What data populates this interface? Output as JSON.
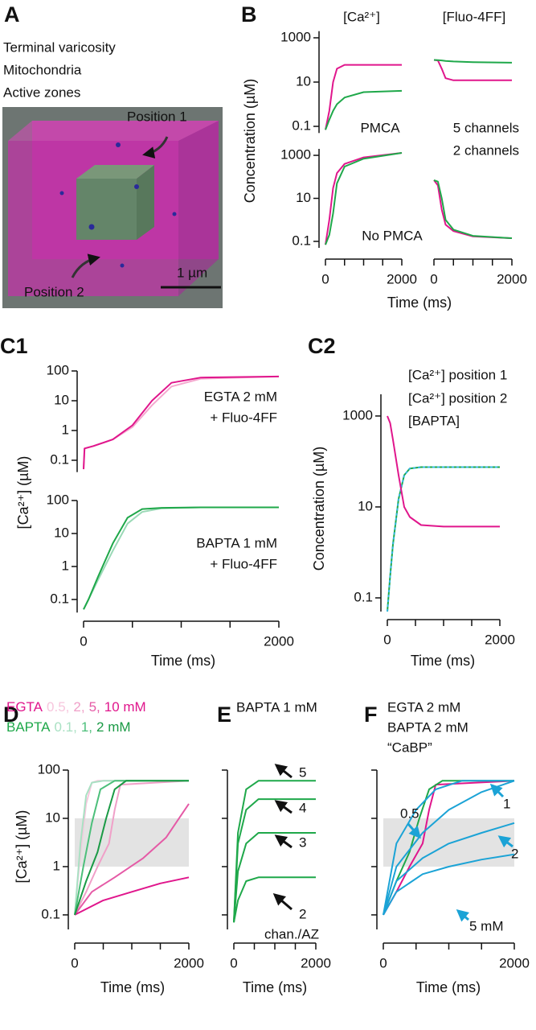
{
  "panel_a": {
    "label": "A",
    "legend": [
      {
        "text": "Terminal varicosity",
        "color": "#d6168a"
      },
      {
        "text": "Mitochondria",
        "color": "#1aa99a"
      },
      {
        "text": "Active zones",
        "color": "#2a2a9a"
      }
    ],
    "position_1": "Position 1",
    "position_2": "Position 2",
    "scale_bar": "1 µm"
  },
  "chart_data": [
    {
      "type": "line",
      "panel": "B",
      "title": "[Ca²⁺]",
      "ylabel": "Concentration (µM)",
      "ylog": true,
      "annotations": [
        {
          "text": "PMCA",
          "color": "#111111"
        }
      ],
      "xlim": [
        0,
        2000
      ],
      "ylim": [
        0.05,
        2000
      ],
      "yticks": [
        0.1,
        10,
        1000
      ],
      "series": [
        {
          "color": "#e0168c",
          "x": [
            0,
            100,
            200,
            300,
            500,
            1000,
            2000
          ],
          "values": [
            0.07,
            0.5,
            10,
            40,
            60,
            60,
            60
          ]
        },
        {
          "color": "#1fa84a",
          "x": [
            0,
            100,
            200,
            300,
            500,
            1000,
            2000
          ],
          "values": [
            0.07,
            0.2,
            0.5,
            1,
            2,
            3.5,
            4
          ]
        }
      ]
    },
    {
      "type": "line",
      "title": "[Fluo-4FF]",
      "ylog": true,
      "annotations": [
        {
          "text": "5 channels",
          "color": "#e0168c"
        },
        {
          "text": "2 channels",
          "color": "#1fa84a"
        }
      ],
      "xlim": [
        0,
        2000
      ],
      "ylim": [
        0.05,
        2000
      ],
      "series": [
        {
          "color": "#e0168c",
          "x": [
            0,
            100,
            200,
            300,
            500,
            1000,
            2000
          ],
          "values": [
            100,
            95,
            40,
            15,
            12,
            12,
            12
          ]
        },
        {
          "color": "#1fa84a",
          "x": [
            0,
            100,
            200,
            300,
            500,
            1000,
            2000
          ],
          "values": [
            100,
            98,
            95,
            90,
            85,
            80,
            75
          ]
        }
      ]
    },
    {
      "type": "line",
      "xlabel": "Time (ms)",
      "ylog": true,
      "annotations": [
        {
          "text": "No PMCA",
          "color": "#111111"
        }
      ],
      "xlim": [
        0,
        2000
      ],
      "ylim": [
        0.05,
        2000
      ],
      "yticks": [
        0.1,
        10,
        1000
      ],
      "xticks": [
        0,
        2000
      ],
      "xminor": [
        500,
        1000,
        1500
      ],
      "series": [
        {
          "color": "#e0168c",
          "x": [
            0,
            100,
            200,
            300,
            500,
            1000,
            2000
          ],
          "values": [
            0.07,
            1,
            30,
            150,
            400,
            800,
            1300
          ]
        },
        {
          "color": "#1fa84a",
          "x": [
            0,
            100,
            200,
            300,
            500,
            1000,
            2000
          ],
          "values": [
            0.07,
            0.2,
            2,
            50,
            300,
            700,
            1300
          ]
        }
      ]
    },
    {
      "type": "line",
      "ylog": true,
      "xlim": [
        0,
        2000
      ],
      "ylim": [
        0.05,
        2000
      ],
      "xticks": [
        0,
        2000
      ],
      "xminor": [
        500,
        1000,
        1500
      ],
      "series": [
        {
          "color": "#e0168c",
          "x": [
            0,
            100,
            200,
            300,
            500,
            1000,
            2000
          ],
          "values": [
            70,
            40,
            3,
            0.6,
            0.3,
            0.17,
            0.14
          ]
        },
        {
          "color": "#1fa84a",
          "x": [
            0,
            100,
            200,
            300,
            500,
            1000,
            2000
          ],
          "values": [
            70,
            60,
            10,
            1,
            0.35,
            0.18,
            0.14
          ]
        }
      ]
    },
    {
      "type": "line",
      "panel": "C1",
      "ylabel": "[Ca²⁺] (µM)",
      "ylog": true,
      "annotations": [
        {
          "text": "EGTA 2 mM",
          "color": "#e0168c"
        },
        {
          "text": "+ Fluo-4FF",
          "color": "#f5a8cf"
        }
      ],
      "xlim": [
        0,
        2000
      ],
      "ylim": [
        0.04,
        100
      ],
      "yticks": [
        0.1,
        1,
        10,
        100
      ],
      "series": [
        {
          "color": "#f5a8cf",
          "x": [
            0,
            10,
            100,
            300,
            500,
            700,
            900,
            1200,
            2000
          ],
          "values": [
            0.05,
            0.25,
            0.3,
            0.5,
            1.3,
            7,
            30,
            55,
            65
          ]
        },
        {
          "color": "#e0168c",
          "x": [
            0,
            10,
            100,
            300,
            500,
            700,
            900,
            1200,
            2000
          ],
          "values": [
            0.05,
            0.25,
            0.3,
            0.5,
            1.5,
            10,
            40,
            60,
            65
          ]
        }
      ]
    },
    {
      "type": "line",
      "xlabel": "Time (ms)",
      "ylog": true,
      "annotations": [
        {
          "text": "BAPTA 1 mM",
          "color": "#1fa84a"
        },
        {
          "text": "+ Fluo-4FF",
          "color": "#9ad9b6"
        }
      ],
      "xlim": [
        0,
        2000
      ],
      "ylim": [
        0.04,
        100
      ],
      "yticks": [
        0.1,
        1,
        10,
        100
      ],
      "xticks": [
        0,
        2000
      ],
      "xminor": [
        500,
        1000,
        1500
      ],
      "series": [
        {
          "color": "#9ad9b6",
          "x": [
            0,
            50,
            150,
            300,
            450,
            600,
            800,
            1200,
            2000
          ],
          "values": [
            0.05,
            0.1,
            0.4,
            3,
            20,
            45,
            58,
            62,
            62
          ]
        },
        {
          "color": "#1fa84a",
          "x": [
            0,
            50,
            150,
            300,
            450,
            600,
            800,
            1200,
            2000
          ],
          "values": [
            0.05,
            0.1,
            0.5,
            5,
            30,
            55,
            60,
            62,
            62
          ]
        }
      ]
    },
    {
      "type": "line",
      "panel": "C2",
      "ylabel": "Concentration (µM)",
      "xlabel": "Time (ms)",
      "ylog": true,
      "xlim": [
        0,
        2000
      ],
      "ylim": [
        0.05,
        3000
      ],
      "yticks": [
        0.1,
        10,
        1000
      ],
      "xticks": [
        0,
        2000
      ],
      "xminor": [
        500,
        1000,
        1500
      ],
      "series": [
        {
          "name": "[Ca²⁺] position 1",
          "color": "#1fa84a",
          "x": [
            0,
            50,
            100,
            200,
            300,
            400,
            600,
            1000,
            2000
          ],
          "values": [
            0.05,
            0.3,
            1.5,
            15,
            50,
            70,
            75,
            75,
            75
          ]
        },
        {
          "name": "[Ca²⁺] position 2",
          "color": "#35b7e0",
          "dash": true,
          "x": [
            0,
            50,
            100,
            200,
            300,
            400,
            600,
            1000,
            2000
          ],
          "values": [
            0.05,
            0.3,
            1.5,
            15,
            50,
            70,
            75,
            75,
            75
          ]
        },
        {
          "name": "[BAPTA]",
          "color": "#e0168c",
          "x": [
            0,
            50,
            100,
            200,
            300,
            400,
            600,
            1000,
            2000
          ],
          "values": [
            1000,
            700,
            300,
            50,
            10,
            6,
            4,
            3.7,
            3.7
          ]
        }
      ]
    },
    {
      "type": "line",
      "panel": "D",
      "ylabel": "[Ca²⁺] (µM)",
      "xlabel": "Time (ms)",
      "ylog": true,
      "groups": [
        {
          "text": "EGTA",
          "color": "#e0168c"
        },
        {
          "text": "BAPTA",
          "color": "#1fa84a"
        }
      ],
      "band": [
        1,
        10
      ],
      "xlim": [
        0,
        2000
      ],
      "ylim": [
        0.05,
        100
      ],
      "yticks": [
        0.1,
        1,
        10,
        100
      ],
      "xticks": [
        0,
        2000
      ],
      "xminor": [
        500,
        1000,
        1500
      ],
      "series": [
        {
          "name": "0.5,",
          "group": 0,
          "color": "#f7c6dd",
          "x": [
            0,
            100,
            200,
            300,
            400,
            2000
          ],
          "values": [
            0.1,
            2,
            20,
            55,
            60,
            60
          ]
        },
        {
          "name": "2,",
          "group": 0,
          "color": "#f0a0c8",
          "x": [
            0,
            200,
            400,
            600,
            700,
            800,
            2000
          ],
          "values": [
            0.1,
            0.3,
            1,
            3,
            15,
            50,
            60
          ]
        },
        {
          "name": "5,",
          "group": 0,
          "color": "#e55aa6",
          "x": [
            0,
            300,
            700,
            1200,
            1600,
            2000
          ],
          "values": [
            0.1,
            0.3,
            0.6,
            1.5,
            4,
            20
          ]
        },
        {
          "name": "10 mM",
          "group": 0,
          "color": "#e0168c",
          "x": [
            0,
            500,
            1000,
            1500,
            2000
          ],
          "values": [
            0.1,
            0.2,
            0.3,
            0.45,
            0.6
          ]
        },
        {
          "name": "0.1,",
          "group": 1,
          "color": "#a9e1c3",
          "x": [
            0,
            100,
            200,
            300,
            500,
            2000
          ],
          "values": [
            0.1,
            3,
            30,
            55,
            60,
            60
          ]
        },
        {
          "name": "1,",
          "group": 1,
          "color": "#4cbf7a",
          "x": [
            0,
            150,
            300,
            450,
            700,
            2000
          ],
          "values": [
            0.1,
            1,
            8,
            40,
            60,
            60
          ]
        },
        {
          "name": "2 mM",
          "group": 1,
          "color": "#1a9a45",
          "x": [
            0,
            200,
            400,
            550,
            700,
            900,
            2000
          ],
          "values": [
            0.1,
            0.5,
            2,
            10,
            40,
            60,
            60
          ]
        }
      ]
    },
    {
      "type": "line",
      "panel": "E",
      "title": "BAPTA 1 mM",
      "title_color": "#1fa84a",
      "xlabel": "Time (ms)",
      "ylog": true,
      "annotations": [
        {
          "text": "chan./AZ",
          "color": "#111111"
        }
      ],
      "xlim": [
        0,
        2000
      ],
      "ylim": [
        0.05,
        100
      ],
      "yminor": [
        0.1,
        1,
        10,
        100
      ],
      "xticks": [
        0,
        2000
      ],
      "xminor": [
        500,
        1000,
        1500
      ],
      "series": [
        {
          "name": "5",
          "color": "#1fa84a",
          "x": [
            0,
            100,
            300,
            600,
            2000
          ],
          "values": [
            0.07,
            5,
            40,
            60,
            60
          ]
        },
        {
          "name": "4",
          "color": "#1fa84a",
          "x": [
            0,
            100,
            300,
            600,
            2000
          ],
          "values": [
            0.07,
            3,
            15,
            25,
            25
          ]
        },
        {
          "name": "3",
          "color": "#1fa84a",
          "x": [
            0,
            100,
            300,
            600,
            2000
          ],
          "values": [
            0.07,
            0.8,
            3,
            5,
            5
          ]
        },
        {
          "name": "2",
          "color": "#1fa84a",
          "x": [
            0,
            100,
            300,
            600,
            2000
          ],
          "values": [
            0.07,
            0.2,
            0.5,
            0.6,
            0.6
          ]
        }
      ]
    },
    {
      "type": "line",
      "panel": "F",
      "xlabel": "Time (ms)",
      "ylog": true,
      "annotations": [
        {
          "text": "“CaBP”",
          "color": "#1ba3d6"
        }
      ],
      "band": [
        1,
        10
      ],
      "xlim": [
        0,
        2000
      ],
      "ylim": [
        0.05,
        100
      ],
      "yminor": [
        0.1,
        1,
        10,
        100
      ],
      "xticks": [
        0,
        2000
      ],
      "xminor": [
        500,
        1000,
        1500
      ],
      "series": [
        {
          "name": "EGTA 2 mM",
          "color": "#e0168c",
          "x": [
            0,
            200,
            400,
            600,
            700,
            800,
            2000
          ],
          "values": [
            0.1,
            0.3,
            1,
            3,
            15,
            50,
            60
          ]
        },
        {
          "name": "BAPTA 2 mM",
          "color": "#1fa84a",
          "x": [
            0,
            200,
            400,
            550,
            700,
            900,
            2000
          ],
          "values": [
            0.1,
            0.5,
            2,
            10,
            40,
            60,
            60
          ]
        },
        {
          "name": "0.5",
          "color": "#1ba3d6",
          "x": [
            0,
            200,
            500,
            800,
            1200,
            2000
          ],
          "values": [
            0.1,
            3,
            15,
            40,
            60,
            60
          ]
        },
        {
          "name": "1",
          "color": "#1ba3d6",
          "x": [
            0,
            200,
            600,
            1000,
            1500,
            2000
          ],
          "values": [
            0.1,
            1,
            5,
            15,
            35,
            60
          ]
        },
        {
          "name": "2",
          "color": "#1ba3d6",
          "x": [
            0,
            200,
            600,
            1000,
            1500,
            2000
          ],
          "values": [
            0.1,
            0.5,
            1.5,
            3,
            5,
            8
          ]
        },
        {
          "name": "5 mM",
          "color": "#1ba3d6",
          "x": [
            0,
            200,
            600,
            1000,
            1500,
            2000
          ],
          "values": [
            0.1,
            0.3,
            0.7,
            1,
            1.4,
            1.8
          ]
        }
      ]
    }
  ]
}
